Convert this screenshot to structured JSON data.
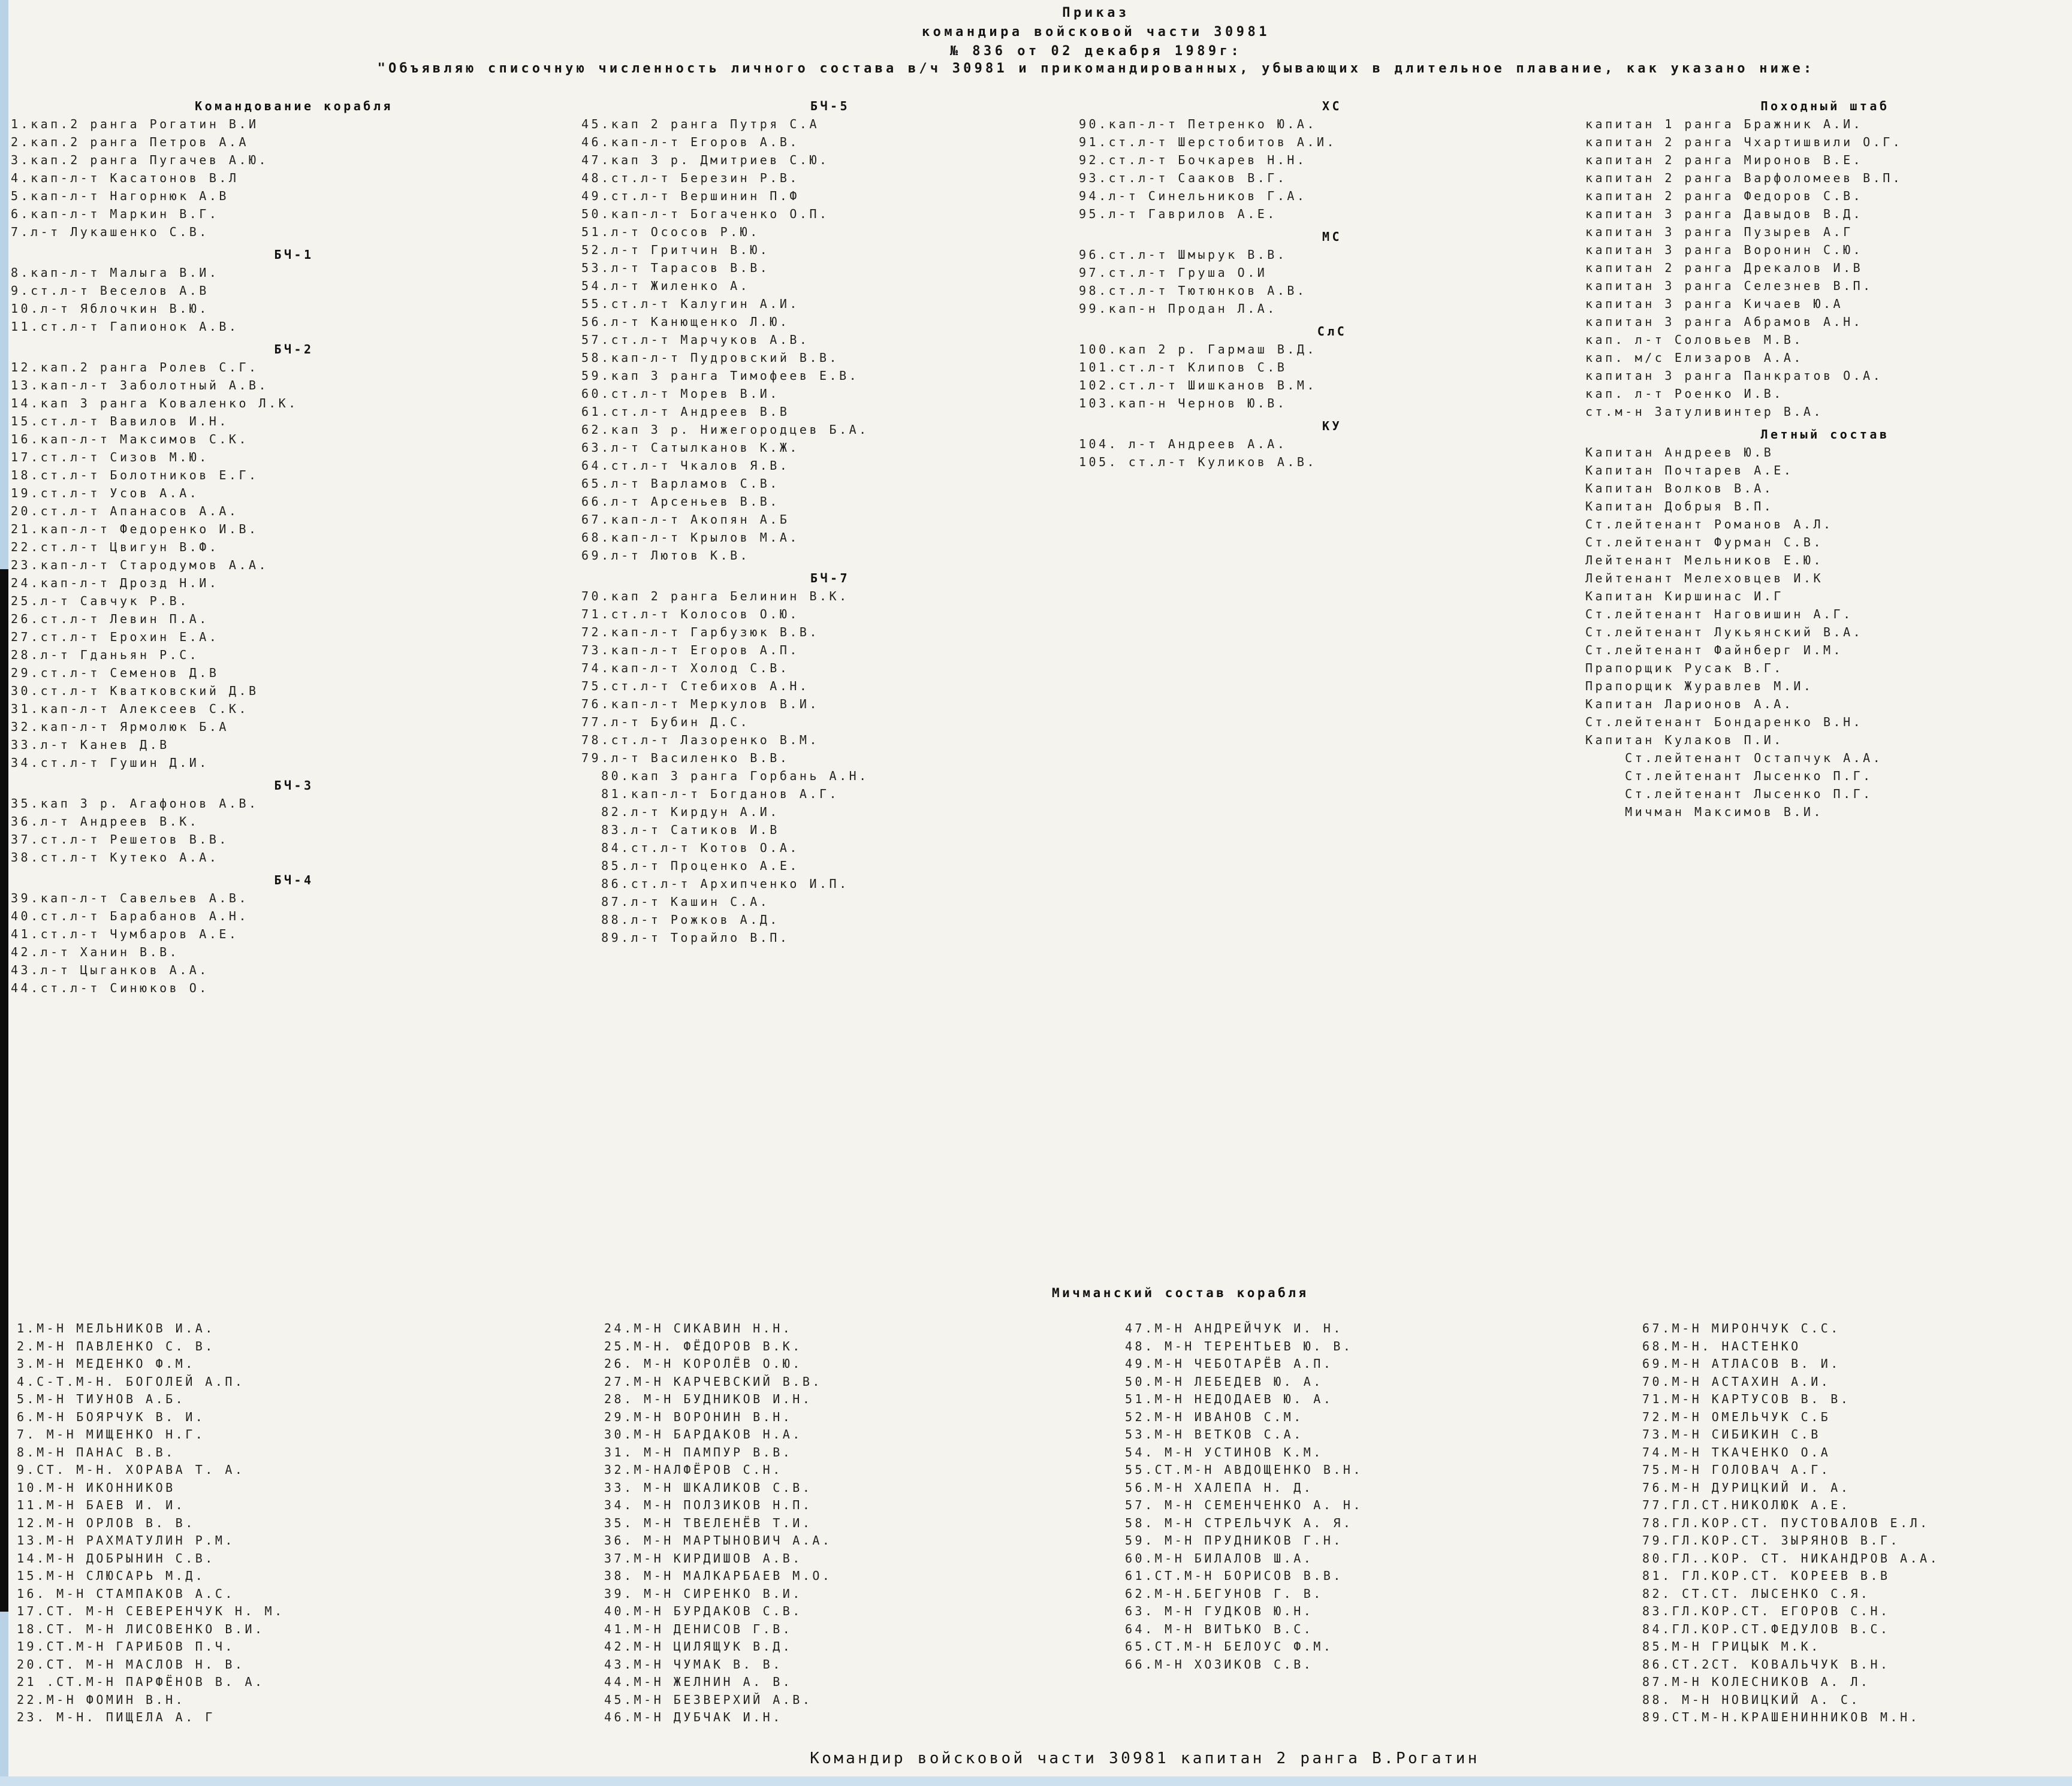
{
  "header": {
    "line1": "Приказ",
    "line2": "командира войсковой части 30981",
    "line3": "№ 836 от 02 декабря 1989г:",
    "subtitle": "\"Объявляю списочную численность личного состава в/ч 30981 и прикомандированных, убывающих в длительное плавание, как указано ниже:"
  },
  "officers": {
    "columns": [
      {
        "blocks": [
          {
            "header": "Командование корабля",
            "items": [
              "1.кап.2 ранга Рогатин В.И",
              "2.кап.2 ранга Петров А.А",
              "3.кап.2 ранга Пугачев А.Ю.",
              "4.кап-л-т Касатонов В.Л",
              "5.кап-л-т Нагорнюк А.В",
              "6.кап-л-т Маркин В.Г.",
              "7.л-т Лукашенко С.В."
            ]
          },
          {
            "header": "БЧ-1",
            "items": [
              "8.кап-л-т Малыга В.И.",
              "9.ст.л-т Веселов А.В",
              "10.л-т Яблочкин В.Ю.",
              "11.ст.л-т Гапионок А.В."
            ]
          },
          {
            "header": "БЧ-2",
            "items": [
              "12.кап.2 ранга Ролев С.Г.",
              "13.кап-л-т Заболотный А.В.",
              "14.кап 3 ранга Коваленко Л.К.",
              "15.ст.л-т Вавилов И.Н.",
              "16.кап-л-т Максимов С.К.",
              "17.ст.л-т Сизов М.Ю.",
              "18.ст.л-т Болотников Е.Г.",
              "19.ст.л-т Усов А.А.",
              "20.ст.л-т Апанасов А.А.",
              "21.кап-л-т Федоренко И.В.",
              "22.ст.л-т Цвигун В.Ф.",
              "23.кап-л-т Стародумов А.А.",
              "24.кап-л-т Дрозд Н.И.",
              "25.л-т Савчук Р.В.",
              "26.ст.л-т Левин П.А.",
              "27.ст.л-т Ерохин Е.А.",
              "28.л-т Гданьян Р.С.",
              "29.ст.л-т Семенов Д.В",
              "30.ст.л-т Кватковский Д.В",
              "31.кап-л-т Алексеев С.К.",
              "32.кап-л-т Ярмолюк Б.А",
              "33.л-т Канев Д.В",
              "34.ст.л-т Гушин Д.И."
            ]
          },
          {
            "header": "БЧ-3",
            "items": [
              "35.кап 3 р. Агафонов А.В.",
              "36.л-т Андреев В.К.",
              "37.ст.л-т Решетов В.В.",
              "38.ст.л-т Кутеко А.А."
            ]
          },
          {
            "header": "БЧ-4",
            "items": [
              "39.кап-л-т Савельев А.В.",
              "40.ст.л-т Барабанов А.Н.",
              "41.ст.л-т Чумбаров А.Е.",
              "42.л-т Ханин В.В.",
              "43.л-т Цыганков А.А.",
              "44.ст.л-т Синюков О."
            ]
          }
        ]
      },
      {
        "blocks": [
          {
            "header": "БЧ-5",
            "items": [
              "45.кап 2 ранга Путря С.А",
              "46.кап-л-т Егоров А.В.",
              "47.кап 3 р. Дмитриев С.Ю.",
              "48.ст.л-т Березин Р.В.",
              "49.ст.л-т Вершинин П.Ф",
              "50.кап-л-т Богаченко О.П.",
              "51.л-т Ососов Р.Ю.",
              "52.л-т Гритчин В.Ю.",
              "53.л-т Тарасов В.В.",
              "54.л-т Жиленко А.",
              "55.ст.л-т Калугин А.И.",
              "56.л-т Канющенко Л.Ю.",
              "57.ст.л-т Марчуков А.В.",
              "58.кап-л-т Пудровский В.В.",
              "59.кап 3 ранга Тимофеев Е.В.",
              "60.ст.л-т Морев В.И.",
              "61.ст.л-т Андреев В.В",
              "62.кап 3 р. Нижегородцев Б.А.",
              "63.л-т Сатылканов К.Ж.",
              "64.ст.л-т Чкалов Я.В.",
              "65.л-т Варламов С.В.",
              "66.л-т Арсеньев В.В.",
              "67.кап-л-т Акопян А.Б",
              "68.кап-л-т Крылов М.А.",
              "69.л-т Лютов К.В."
            ]
          },
          {
            "header": "БЧ-7",
            "items": [
              "70.кап 2 ранга Белинин В.К.",
              "71.ст.л-т Колосов О.Ю.",
              "72.кап-л-т Гарбузюк В.В.",
              "73.кап-л-т Егоров А.П.",
              "74.кап-л-т Холод С.В.",
              "75.ст.л-т Стебихов А.Н.",
              "76.кап-л-т Меркулов В.И.",
              "77.л-т Бубин Д.С.",
              "78.ст.л-т Лазоренко В.М.",
              "79.л-т Василенко В.В.",
              "  80.кап 3 ранга Горбань А.Н.",
              "  81.кап-л-т Богданов А.Г.",
              "  82.л-т Кирдун А.И.",
              "  83.л-т Сатиков И.В",
              "  84.ст.л-т Котов О.А.",
              "  85.л-т Проценко А.Е.",
              "  86.ст.л-т Архипченко И.П.",
              "  87.л-т Кашин С.А.",
              "  88.л-т Рожков А.Д.",
              "  89.л-т Торайло В.П."
            ]
          }
        ]
      },
      {
        "blocks": [
          {
            "header": "ХС",
            "items": [
              "90.кап-л-т Петренко Ю.А.",
              "91.ст.л-т Шерстобитов А.И.",
              "92.ст.л-т Бочкарев Н.Н.",
              "93.ст.л-т Сааков В.Г.",
              "94.л-т Синельников Г.А.",
              "95.л-т Гаврилов А.Е."
            ]
          },
          {
            "header": "МС",
            "items": [
              "96.ст.л-т Шмырук В.В.",
              "97.ст.л-т Груша О.И",
              "98.ст.л-т Тютюнков А.В.",
              "99.кап-н Продан Л.А."
            ]
          },
          {
            "header": "СлС",
            "items": [
              "100.кап 2 р. Гармаш В.Д.",
              "101.ст.л-т Клипов С.В",
              "102.ст.л-т Шишканов В.М.",
              "103.кап-н Чернов Ю.В."
            ]
          },
          {
            "header": "КУ",
            "items": [
              "104. л-т Андреев А.А.",
              "105. ст.л-т Куликов А.В."
            ]
          }
        ]
      },
      {
        "blocks": [
          {
            "header": "Походный штаб",
            "items": [
              "капитан 1 ранга Бражник А.И.",
              "капитан 2 ранга Чхартишвили О.Г.",
              "капитан 2 ранга Миронов В.Е.",
              "капитан 2 ранга Варфоломеев В.П.",
              "капитан 2 ранга Федоров С.В.",
              "капитан 3 ранга Давыдов В.Д.",
              "капитан 3 ранга Пузырев А.Г",
              "капитан 3 ранга Воронин С.Ю.",
              "капитан 2 ранга Дрекалов И.В",
              "капитан 3 ранга Селезнев В.П.",
              "капитан 3 ранга Кичаев Ю.А",
              "капитан 3 ранга Абрамов А.Н.",
              "кап. л-т Соловьев М.В.",
              "кап. м/с Елизаров А.А.",
              "капитан 3 ранга Панкратов О.А.",
              "кап. л-т Роенко И.В.",
              "ст.м-н Затуливинтер В.А."
            ]
          },
          {
            "header": "Летный состав",
            "items": [
              "Капитан Андреев Ю.В",
              "Капитан Почтарев А.Е.",
              "Капитан Волков В.А.",
              "Капитан Добрыя В.П.",
              "Ст.лейтенант Романов А.Л.",
              "Ст.лейтенант Фурман С.В.",
              "Лейтенант Мельников Е.Ю.",
              "Лейтенант Мелеховцев И.К",
              "Капитан Киршинас И.Г",
              "Ст.лейтенант Наговишин А.Г.",
              "Ст.лейтенант Лукьянский В.А.",
              "Ст.лейтенант Файнберг И.М.",
              "Прапорщик Русак В.Г.",
              "Прапорщик Журавлев М.И.",
              "Капитан Ларионов А.А.",
              "Ст.лейтенант Бондаренко В.Н.",
              "Капитан Кулаков П.И.",
              "    Ст.лейтенант Остапчук А.А.",
              "    Ст.лейтенант Лысенко П.Г.",
              "    Ст.лейтенант Лысенко П.Г.",
              "    Мичман Максимов В.И."
            ]
          }
        ]
      }
    ]
  },
  "michman": {
    "header": "Мичманский состав корабля",
    "columns": [
      {
        "items": [
          "1.М-Н МЕЛЬНИКОВ И.А.",
          "2.М-Н ПАВЛЕНКО С. В.",
          "3.М-Н МЕДЕНКО Ф.М.",
          "4.С-Т.М-Н. БОГОЛЕЙ А.П.",
          "5.М-Н ТИУНОВ А.Б.",
          "6.М-Н БОЯРЧУК В. И.",
          "7. М-Н МИЩЕНКО Н.Г.",
          "8.М-Н ПАНАС В.В.",
          "9.СТ. М-Н. ХОРАВА Т. А.",
          "10.М-Н ИКОННИКОВ",
          "11.М-Н БАЕВ И. И.",
          "12.М-Н ОРЛОВ В. В.",
          "13.М-Н РАХМАТУЛИН Р.М.",
          "14.М-Н ДОБРЫНИН С.В.",
          "15.М-Н СЛЮСАРЬ М.Д.",
          "16. М-Н СТАМПАКОВ А.С.",
          "17.СТ. М-Н СЕВЕРЕНЧУК Н. М.",
          "18.СТ. М-Н ЛИСОВЕНКО В.И.",
          "19.СТ.М-Н ГАРИБОВ П.Ч.",
          "20.СТ. М-Н МАСЛОВ Н. В.",
          "21 .СТ.М-Н ПАРФЁНОВ В. А.",
          "22.М-Н ФОМИН В.Н.",
          "23. М-Н. ПИЩЕЛА А. Г"
        ]
      },
      {
        "items": [
          "24.М-Н СИКАВИН Н.Н.",
          "25.М-Н. ФЁДОРОВ В.К.",
          "26. М-Н КОРОЛЁВ О.Ю.",
          "27.М-Н КАРЧЕВСКИЙ В.В.",
          "28. М-Н БУДНИКОВ И.Н.",
          "29.М-Н ВОРОНИН В.Н.",
          "30.М-Н БАРДАКОВ Н.А.",
          "31. М-Н ПАМПУР В.В.",
          "32.М-НАЛФЁРОВ С.Н.",
          "33. М-Н ШКАЛИКОВ С.В.",
          "34. М-Н ПОЛЗИКОВ Н.П.",
          "35. М-Н ТВЕЛЕНЁВ Т.И.",
          "36. М-Н МАРТЫНОВИЧ А.А.",
          "37.М-Н КИРДИШОВ А.В.",
          "38. М-Н МАЛКАРБАЕВ М.О.",
          "39. М-Н СИРЕНКО В.И.",
          "40.М-Н БУРДАКОВ С.В.",
          "41.М-Н ДЕНИСОВ Г.В.",
          "42.М-Н ЦИЛЯЩУК В.Д.",
          "43.М-Н ЧУМАК В. В.",
          "44.М-Н ЖЕЛНИН А. В.",
          "45.М-Н БЕЗВЕРХИЙ А.В.",
          "46.М-Н ДУБЧАК И.Н."
        ]
      },
      {
        "items": [
          "47.М-Н АНДРЕЙЧУК И. Н.",
          "48. М-Н ТЕРЕНТЬЕВ Ю. В.",
          "49.М-Н ЧЕБОТАРЁВ А.П.",
          "50.М-Н ЛЕБЕДЕВ Ю. А.",
          "51.М-Н НЕДОДАЕВ Ю. А.",
          "52.М-Н ИВАНОВ С.М.",
          "53.М-Н ВЕТКОВ С.А.",
          "54. М-Н УСТИНОВ К.М.",
          "55.СТ.М-Н АВДОЩЕНКО В.Н.",
          "56.М-Н ХАЛЕПА Н. Д.",
          "57. М-Н СЕМЕНЧЕНКО А. Н.",
          "58. М-Н СТРЕЛЬЧУК А. Я.",
          "59. М-Н ПРУДНИКОВ Г.Н.",
          "60.М-Н БИЛАЛОВ Ш.А.",
          "61.СТ.М-Н БОРИСОВ В.В.",
          "62.М-Н.БЕГУНОВ Г. В.",
          "63. М-Н ГУДКОВ Ю.Н.",
          "64. М-Н ВИТЬКО В.С.",
          "65.СТ.М-Н БЕЛОУС Ф.М.",
          "66.М-Н ХОЗИКОВ С.В."
        ]
      },
      {
        "items": [
          "67.М-Н МИРОНЧУК С.С.",
          "68.М-Н. НАСТЕНКО",
          "69.М-Н АТЛАСОВ В. И.",
          "70.М-Н АСТАХИН А.И.",
          "71.М-Н КАРТУСОВ В. В.",
          "72.М-Н ОМЕЛЬЧУК С.Б",
          "73.М-Н СИБИКИН С.В",
          "74.М-Н ТКАЧЕНКО О.А",
          "75.М-Н ГОЛОВАЧ А.Г.",
          "76.М-Н ДУРИЦКИЙ И. А.",
          "77.ГЛ.СТ.НИКОЛЮК А.Е.",
          "78.ГЛ.КОР.СТ. ПУСТОВАЛОВ Е.Л.",
          "79.ГЛ.КОР.СТ. ЗЫРЯНОВ В.Г.",
          "80.ГЛ..КОР. СТ. НИКАНДРОВ А.А.",
          "81. ГЛ.КОР.СТ. КОРЕЕВ В.В",
          "82. СТ.СТ. ЛЫСЕНКО С.Я.",
          "83.ГЛ.КОР.СТ. ЕГОРОВ С.Н.",
          "84.ГЛ.КОР.СТ.ФЕДУЛОВ В.С.",
          "85.М-Н ГРИЦЫК М.К.",
          "86.СТ.2СТ. КОВАЛЬЧУК В.Н.",
          "87.М-Н КОЛЕСНИКОВ А. Л.",
          "88. М-Н НОВИЦКИЙ А. С.",
          "89.СТ.М-Н.КРАШЕНИННИКОВ М.Н."
        ]
      }
    ]
  },
  "footer": {
    "text": "Командир войсковой части 30981 капитан 2 ранга В.Рогатин"
  }
}
